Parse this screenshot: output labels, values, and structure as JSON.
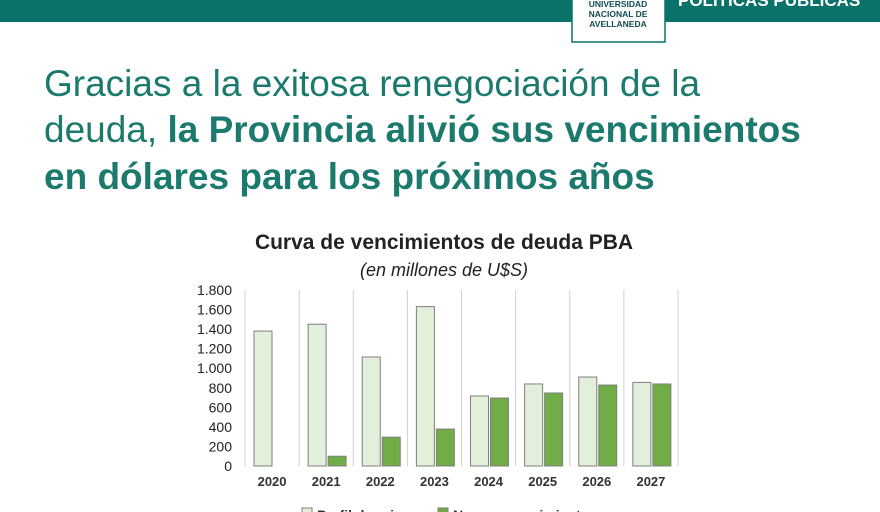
{
  "header": {
    "brand": [
      "UNIVERSIDAD",
      "NACIONAL DE",
      "AVELLANEDA"
    ],
    "section": "POLÍTICAS PÚBLICAS"
  },
  "headline": {
    "line1": "Gracias a la exitosa renegociación de la",
    "line2_light": "deuda, ",
    "line2_bold": "la Provincia alivió sus vencimientos",
    "line3": "en dólares para los próximos años"
  },
  "chart_data": {
    "type": "bar",
    "title": "Curva de vencimientos de deuda PBA",
    "subtitle": "(en millones de U$S)",
    "categories": [
      "2020",
      "2021",
      "2022",
      "2023",
      "2024",
      "2025",
      "2026",
      "2027"
    ],
    "series": [
      {
        "name": "Perfil de origen",
        "color": "#e2efda",
        "values": [
          1380,
          1450,
          1115,
          1630,
          716,
          839,
          910,
          855
        ]
      },
      {
        "name": "Nuevos vencimientos",
        "color": "#70ad47",
        "values": [
          null,
          100,
          295,
          378,
          695,
          747,
          828,
          839
        ]
      }
    ],
    "ylim": [
      0,
      1800
    ],
    "yticks": [
      0,
      200,
      400,
      600,
      800,
      {
        "value": 1000,
        "label": "1.000"
      },
      {
        "value": 1200,
        "label": "1.200"
      },
      {
        "value": 1400,
        "label": "1.400"
      },
      {
        "value": 1600,
        "label": "1.600"
      },
      {
        "value": 1800,
        "label": "1.800"
      }
    ],
    "grid": false,
    "legend": "bottom"
  }
}
